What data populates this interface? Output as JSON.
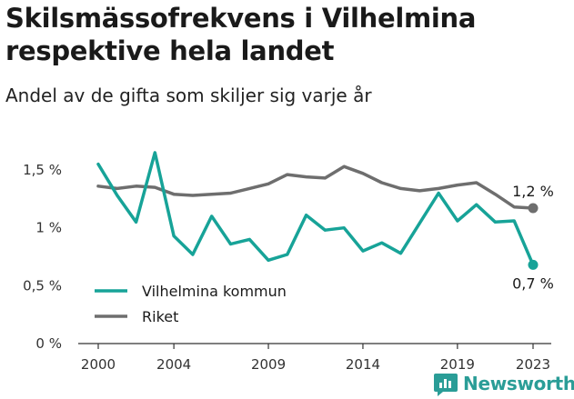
{
  "title": "Skilsmässofrekvens i Vilhelmina respektive hela landet",
  "subtitle": "Andel av de gifta som skiljer sig varje år",
  "brand": {
    "name": "Newsworthy",
    "logo_icon": "bar-chart-logo-icon",
    "color": "#2a9d97"
  },
  "chart_data": {
    "type": "line",
    "title": "Skilsmässofrekvens i Vilhelmina respektive hela landet",
    "subtitle": "Andel av de gifta som skiljer sig varje år",
    "xlabel": "",
    "ylabel": "",
    "xlim": [
      2000,
      2023
    ],
    "ylim": [
      0,
      1.5
    ],
    "x_ticks": [
      2000,
      2004,
      2009,
      2014,
      2019,
      2023
    ],
    "x_tick_labels": [
      "2000",
      "2004",
      "2009",
      "2014",
      "2019",
      "2023"
    ],
    "y_ticks": [
      0,
      0.5,
      1,
      1.5
    ],
    "y_tick_labels": [
      "0 %",
      "0,5 %",
      "1 %",
      "1,5 %"
    ],
    "grid": false,
    "legend": "bottom-left",
    "x": [
      2000,
      2001,
      2002,
      2003,
      2004,
      2005,
      2006,
      2007,
      2008,
      2009,
      2010,
      2011,
      2012,
      2013,
      2014,
      2015,
      2016,
      2017,
      2018,
      2019,
      2020,
      2021,
      2022,
      2023
    ],
    "series": [
      {
        "name": "Vilhelmina kommun",
        "color": "#17a398",
        "values": [
          1.55,
          1.28,
          1.05,
          1.65,
          0.93,
          0.77,
          1.1,
          0.86,
          0.9,
          0.72,
          0.77,
          1.11,
          0.98,
          1.0,
          0.8,
          0.87,
          0.78,
          1.04,
          1.3,
          1.06,
          1.2,
          1.05,
          1.06,
          0.68
        ],
        "end_label": "0,7 %"
      },
      {
        "name": "Riket",
        "color": "#6e6e6e",
        "values": [
          1.36,
          1.34,
          1.36,
          1.35,
          1.29,
          1.28,
          1.29,
          1.3,
          1.34,
          1.38,
          1.46,
          1.44,
          1.43,
          1.53,
          1.47,
          1.39,
          1.34,
          1.32,
          1.34,
          1.37,
          1.39,
          1.29,
          1.18,
          1.17
        ],
        "end_label": "1,2 %"
      }
    ]
  }
}
